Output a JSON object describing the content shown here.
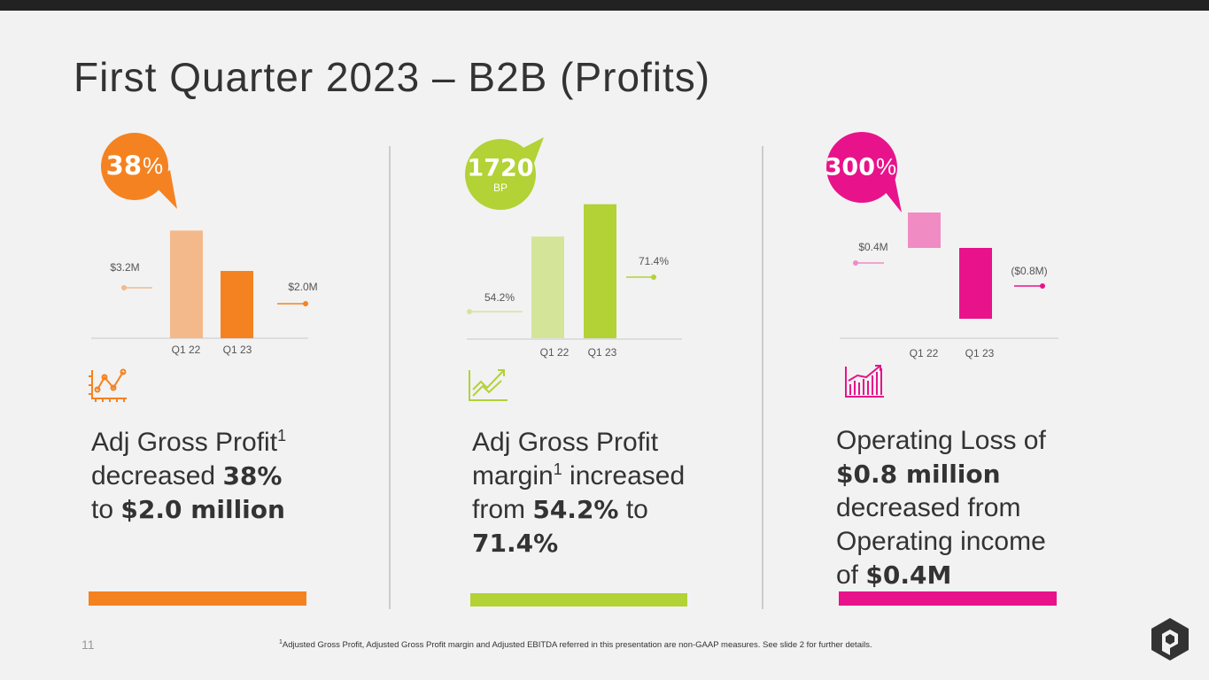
{
  "slide": {
    "title": "First Quarter 2023 – B2B (Profits)",
    "panels": [
      {
        "badge": [
          "38",
          "%"
        ],
        "text": [
          "Adj Gross Profit",
          "1",
          "decreased ",
          "38%",
          "to ",
          "$2.0 million"
        ]
      },
      {
        "badge": [
          "1720",
          "BP"
        ],
        "text": [
          "Adj Gross Profit",
          "margin",
          "1",
          " increased",
          "from ",
          "54.2%",
          " to",
          "71.4%"
        ]
      },
      {
        "badge": [
          "300",
          "%"
        ],
        "text": [
          "Operating Loss of",
          "$0.8 million",
          "decreased from",
          "Operating income",
          "of ",
          "$0.4M"
        ]
      }
    ],
    "page_number": "11",
    "footnote": [
      "1",
      "Adjusted Gross Profit, Adjusted Gross Profit margin and Adjusted EBITDA referred in this presentation are non-GAAP measures. See slide 2 for further details."
    ]
  },
  "chart_data": [
    {
      "type": "bar",
      "categories": [
        "Q1 22",
        "Q1 23"
      ],
      "values": [
        3.2,
        2.0
      ],
      "value_labels": [
        "$3.2M",
        "$2.0M"
      ],
      "colors": [
        "#f3b98a",
        "#f58220"
      ]
    },
    {
      "type": "bar",
      "categories": [
        "Q1 22",
        "Q1 23"
      ],
      "values": [
        54.2,
        71.4
      ],
      "value_labels": [
        "54.2%",
        "71.4%"
      ],
      "colors": [
        "#d4e59a",
        "#b2d235"
      ]
    },
    {
      "type": "bar",
      "categories": [
        "Q1 22",
        "Q1 23"
      ],
      "values": [
        0.4,
        -0.8
      ],
      "value_labels": [
        "$0.4M",
        "($0.8M)"
      ],
      "colors": [
        "#f08bc4",
        "#e8138b"
      ]
    }
  ]
}
